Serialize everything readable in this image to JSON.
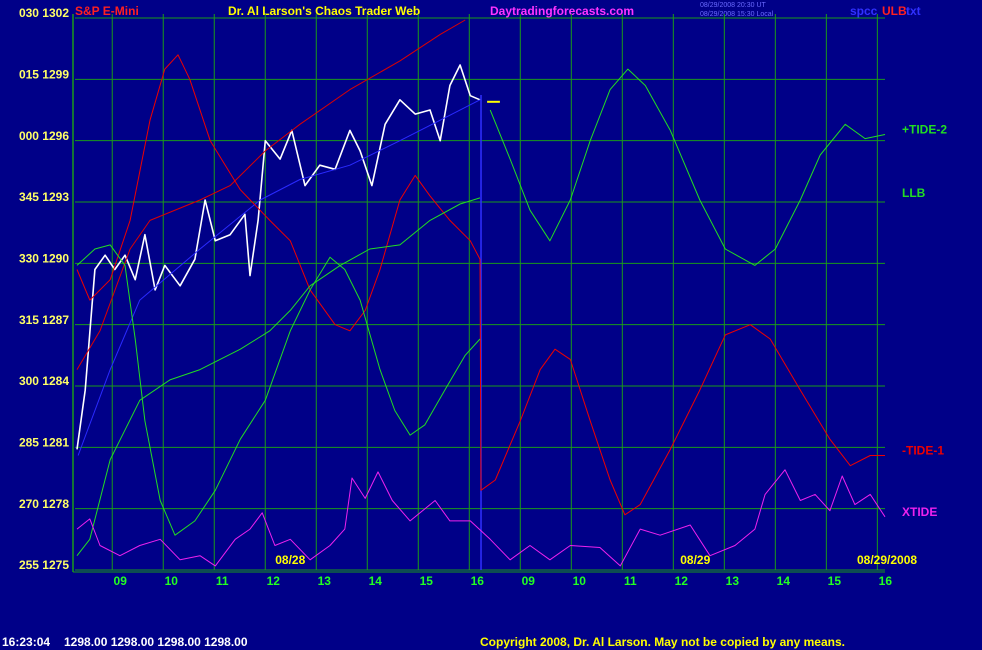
{
  "header": {
    "stamp_ut": "08/29/2008 20:30 UT",
    "stamp_local": "08/29/2008 15:30 Local",
    "code_a": "spcc",
    "code_b": "ULB",
    "code_c": "txt"
  },
  "footer": {
    "time": "16:23:04",
    "quote": "1298.00 1298.00 1298.00 1298.00",
    "copyright": "Copyright 2008, Dr. Al Larson. May not be copied by any means."
  },
  "chart_data": {
    "type": "line",
    "symbol": "S&P E-Mini",
    "title": "Dr. Al Larson's Chaos Trader Web",
    "site": "Daytradingforecasts.com",
    "day_labels": [
      {
        "x": 4.22,
        "label": "08/28"
      },
      {
        "x": 12.16,
        "label": "08/29"
      },
      {
        "x": 15.92,
        "label": "08/29/2008"
      }
    ],
    "xlim": [
      0,
      15.88
    ],
    "ylim": [
      1275,
      1302
    ],
    "grid": true,
    "xticks": [
      {
        "value": 0.73,
        "label": "09"
      },
      {
        "value": 1.73,
        "label": "10"
      },
      {
        "value": 2.73,
        "label": "11"
      },
      {
        "value": 3.73,
        "label": "12"
      },
      {
        "value": 4.73,
        "label": "13"
      },
      {
        "value": 5.73,
        "label": "14"
      },
      {
        "value": 6.73,
        "label": "15"
      },
      {
        "value": 7.73,
        "label": "16"
      },
      {
        "value": 8.73,
        "label": "09"
      },
      {
        "value": 9.73,
        "label": "10"
      },
      {
        "value": 10.73,
        "label": "11"
      },
      {
        "value": 11.73,
        "label": "12"
      },
      {
        "value": 12.73,
        "label": "13"
      },
      {
        "value": 13.73,
        "label": "14"
      },
      {
        "value": 14.73,
        "label": "15"
      },
      {
        "value": 15.73,
        "label": "16"
      }
    ],
    "yticks": [
      {
        "value": 1302,
        "label": "030 1302"
      },
      {
        "value": 1299,
        "label": "015 1299"
      },
      {
        "value": 1296,
        "label": "000 1296"
      },
      {
        "value": 1293,
        "label": "345 1293"
      },
      {
        "value": 1290,
        "label": "330 1290"
      },
      {
        "value": 1287,
        "label": "315 1287"
      },
      {
        "value": 1284,
        "label": "300 1284"
      },
      {
        "value": 1281,
        "label": "285 1281"
      },
      {
        "value": 1278,
        "label": "270 1278"
      },
      {
        "value": 1275,
        "label": "255 1275"
      }
    ],
    "now_x": 7.96,
    "series": [
      {
        "color": "#ffffff",
        "width": 1.6,
        "x": [
          0.04,
          0.2,
          0.39,
          0.59,
          0.78,
          0.98,
          1.18,
          1.37,
          1.57,
          1.76,
          2.06,
          2.35,
          2.55,
          2.75,
          3.04,
          3.33,
          3.43,
          3.59,
          3.73,
          4.02,
          4.25,
          4.51,
          4.8,
          5.1,
          5.39,
          5.59,
          5.82,
          6.08,
          6.37,
          6.67,
          6.96,
          7.16,
          7.35,
          7.55,
          7.75,
          7.94
        ],
        "values": [
          1280.9,
          1283.8,
          1289.7,
          1290.4,
          1289.7,
          1290.4,
          1289.2,
          1291.4,
          1288.7,
          1289.9,
          1288.9,
          1290.2,
          1293.1,
          1291.1,
          1291.4,
          1292.4,
          1289.4,
          1292.1,
          1296.0,
          1295.1,
          1296.5,
          1293.8,
          1294.8,
          1294.6,
          1296.5,
          1295.5,
          1293.8,
          1296.8,
          1298.0,
          1297.3,
          1297.5,
          1296.0,
          1298.7,
          1299.7,
          1298.2,
          1298.0
        ]
      },
      {
        "color": "#2a2aff",
        "width": 1,
        "x": [
          0.06,
          0.69,
          1.27,
          2.45,
          3.63,
          4.41,
          5.39,
          6.37,
          7.16,
          7.94
        ],
        "values": [
          1280.6,
          1284.8,
          1288.2,
          1290.7,
          1293.1,
          1294.1,
          1294.8,
          1296.0,
          1297.0,
          1298.0
        ]
      },
      {
        "color": "#ffff00",
        "width": 2,
        "x": [
          8.08,
          8.33
        ],
        "values": [
          1297.9,
          1297.9
        ]
      },
      {
        "color": "#dd0000",
        "width": 1,
        "x": [
          0.04,
          0.49,
          1.08,
          1.47,
          2.45,
          3.04,
          3.73,
          4.41,
          5.39,
          6.37,
          7.16,
          7.65
        ],
        "values": [
          1284.8,
          1286.7,
          1290.7,
          1292.1,
          1293.1,
          1293.8,
          1295.5,
          1296.8,
          1298.5,
          1299.9,
          1301.2,
          1301.9
        ]
      },
      {
        "name": "-TIDE-1",
        "color": "#ee0000",
        "width": 1,
        "x": [
          0.04,
          0.29,
          0.69,
          1.08,
          1.47,
          1.76,
          2.02,
          2.25,
          2.65,
          3.24,
          3.82,
          4.22,
          4.61,
          5.1,
          5.39,
          5.69,
          5.98,
          6.37,
          6.67,
          6.96,
          7.35,
          7.75,
          7.94,
          7.96,
          8.24,
          8.73,
          9.12,
          9.41,
          9.71,
          10.1,
          10.49,
          10.78,
          11.08,
          11.67,
          12.25,
          12.75,
          13.24,
          13.63,
          14.22,
          14.8,
          15.2,
          15.59,
          15.88
        ],
        "values": [
          1289.7,
          1288.2,
          1289.2,
          1292.1,
          1297.0,
          1299.5,
          1300.2,
          1299.0,
          1296.0,
          1293.6,
          1292.1,
          1291.1,
          1288.7,
          1287.0,
          1286.7,
          1287.7,
          1289.7,
          1293.1,
          1294.3,
          1293.3,
          1292.1,
          1291.1,
          1290.2,
          1278.9,
          1279.4,
          1282.3,
          1284.8,
          1285.8,
          1285.3,
          1282.3,
          1279.4,
          1277.7,
          1278.2,
          1280.9,
          1283.8,
          1286.5,
          1287.0,
          1286.3,
          1283.8,
          1281.4,
          1280.1,
          1280.6,
          1280.6
        ]
      },
      {
        "name": "+TIDE-2",
        "color": "#22dd22",
        "width": 1,
        "x": [
          0.04,
          0.39,
          0.69,
          0.98,
          1.18,
          1.37,
          1.67,
          1.96,
          2.35,
          2.75,
          3.24,
          3.73,
          4.22,
          4.61,
          5.0,
          5.29,
          5.59,
          5.98,
          6.27,
          6.57,
          6.86,
          7.25,
          7.65,
          7.94,
          7.96,
          8.14,
          8.53,
          8.92,
          9.31,
          9.71,
          10.1,
          10.49,
          10.84,
          11.18,
          11.67,
          12.25,
          12.75,
          13.33,
          13.73,
          14.22,
          14.61,
          15.1,
          15.49,
          15.88
        ],
        "values": [
          1289.9,
          1290.7,
          1290.9,
          1289.9,
          1286.3,
          1282.3,
          1278.4,
          1276.7,
          1277.4,
          1278.9,
          1281.4,
          1283.3,
          1286.7,
          1288.7,
          1290.3,
          1289.7,
          1288.2,
          1284.8,
          1282.8,
          1281.6,
          1282.1,
          1283.8,
          1285.5,
          1286.3,
          null,
          1297.5,
          1295.1,
          1292.6,
          1291.1,
          1293.1,
          1296.0,
          1298.5,
          1299.5,
          1298.7,
          1296.5,
          1293.1,
          1290.7,
          1289.9,
          1290.7,
          1293.1,
          1295.3,
          1296.8,
          1296.1,
          1296.3
        ]
      },
      {
        "name": "LLB",
        "color": "#22dd22",
        "width": 1,
        "x": [
          0.04,
          0.29,
          0.69,
          1.27,
          1.86,
          2.45,
          3.24,
          3.82,
          4.22,
          4.61,
          5.2,
          5.78,
          6.37,
          6.96,
          7.55,
          7.94
        ],
        "values": [
          1275.7,
          1276.5,
          1280.4,
          1283.3,
          1284.3,
          1284.8,
          1285.8,
          1286.7,
          1287.7,
          1288.9,
          1289.9,
          1290.7,
          1290.9,
          1292.1,
          1292.9,
          1293.2
        ]
      },
      {
        "name": "XTIDE",
        "color": "#ee22ee",
        "width": 1,
        "x": [
          0.04,
          0.29,
          0.49,
          0.88,
          1.27,
          1.67,
          2.06,
          2.45,
          2.75,
          3.14,
          3.43,
          3.67,
          3.92,
          4.22,
          4.61,
          5.0,
          5.29,
          5.43,
          5.69,
          5.94,
          6.22,
          6.57,
          7.06,
          7.35,
          7.75,
          8.14,
          8.53,
          8.92,
          9.31,
          9.71,
          10.29,
          10.69,
          11.08,
          11.47,
          12.06,
          12.45,
          12.94,
          13.33,
          13.53,
          13.92,
          14.22,
          14.51,
          14.8,
          15.04,
          15.29,
          15.59,
          15.88
        ],
        "values": [
          1277.0,
          1277.5,
          1276.2,
          1275.7,
          1276.2,
          1276.5,
          1275.5,
          1275.7,
          1275.2,
          1276.5,
          1277.0,
          1277.8,
          1276.2,
          1276.5,
          1275.5,
          1276.2,
          1277.0,
          1279.5,
          1278.5,
          1279.8,
          1278.4,
          1277.4,
          1278.4,
          1277.4,
          1277.4,
          1276.5,
          1275.5,
          1276.2,
          1275.5,
          1276.2,
          1276.1,
          1275.2,
          1277.0,
          1276.7,
          1277.2,
          1275.7,
          1276.2,
          1277.0,
          1278.7,
          1279.9,
          1278.4,
          1278.7,
          1277.9,
          1279.6,
          1278.2,
          1278.7,
          1277.6
        ]
      }
    ]
  }
}
